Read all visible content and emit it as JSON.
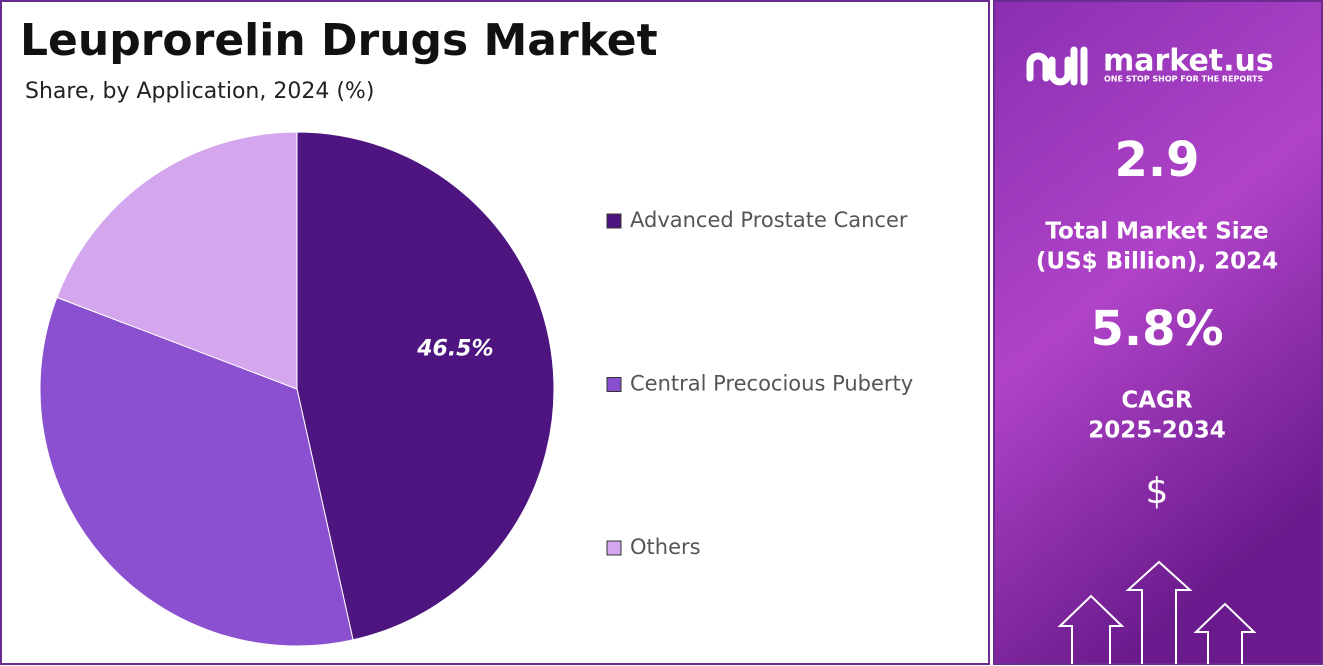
{
  "chart_data": {
    "type": "pie",
    "title": "Leuprorelin Drugs Market",
    "subtitle": "Share, by Application, 2024 (%)",
    "categories": [
      "Advanced Prostate Cancer",
      "Central Precocious Puberty",
      "Others"
    ],
    "values": [
      46.5,
      34.3,
      19.2
    ],
    "value_labels": [
      "46.5%",
      null,
      null
    ],
    "colors": [
      "#4e1581",
      "#8b50d0",
      "#d4a6ee"
    ],
    "legend": "right"
  },
  "side_panel": {
    "logo": "market.us",
    "tagline": "ONE STOP SHOP FOR THE REPORTS",
    "market_size": "2.9",
    "market_size_label_1": "Total Market Size",
    "market_size_label_2": "(US$ Billion), 2024",
    "cagr": "5.8%",
    "cagr_label_1": "CAGR",
    "cagr_label_2": "2025-2034",
    "currency_icon": "$"
  }
}
